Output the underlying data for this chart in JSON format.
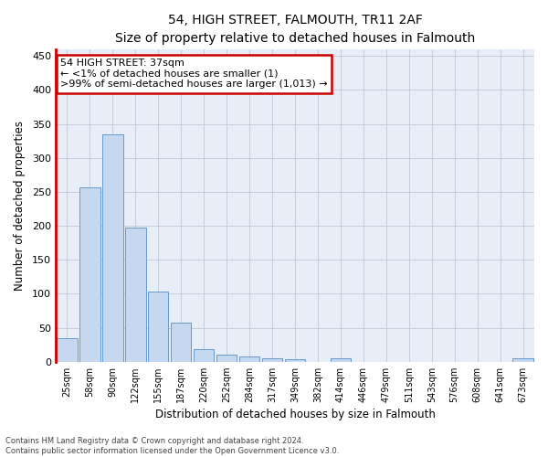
{
  "title": "54, HIGH STREET, FALMOUTH, TR11 2AF",
  "subtitle": "Size of property relative to detached houses in Falmouth",
  "xlabel": "Distribution of detached houses by size in Falmouth",
  "ylabel": "Number of detached properties",
  "bar_color": "#c5d8f0",
  "bar_edge_color": "#6699cc",
  "categories": [
    "25sqm",
    "58sqm",
    "90sqm",
    "122sqm",
    "155sqm",
    "187sqm",
    "220sqm",
    "252sqm",
    "284sqm",
    "317sqm",
    "349sqm",
    "382sqm",
    "414sqm",
    "446sqm",
    "479sqm",
    "511sqm",
    "543sqm",
    "576sqm",
    "608sqm",
    "641sqm",
    "673sqm"
  ],
  "values": [
    34,
    256,
    335,
    197,
    103,
    57,
    19,
    11,
    7,
    5,
    3,
    0,
    5,
    0,
    0,
    0,
    0,
    0,
    0,
    0,
    5
  ],
  "ylim": [
    0,
    460
  ],
  "yticks": [
    0,
    50,
    100,
    150,
    200,
    250,
    300,
    350,
    400,
    450
  ],
  "annotation_line1": "54 HIGH STREET: 37sqm",
  "annotation_line2": "← <1% of detached houses are smaller (1)",
  "annotation_line3": ">99% of semi-detached houses are larger (1,013) →",
  "annotation_box_color": "#ffffff",
  "annotation_box_edge": "#cc0000",
  "footer_line1": "Contains HM Land Registry data © Crown copyright and database right 2024.",
  "footer_line2": "Contains public sector information licensed under the Open Government Licence v3.0.",
  "bg_color": "#e8eef8",
  "grid_color": "#c0c8d8",
  "title_fontsize": 11,
  "subtitle_fontsize": 10
}
